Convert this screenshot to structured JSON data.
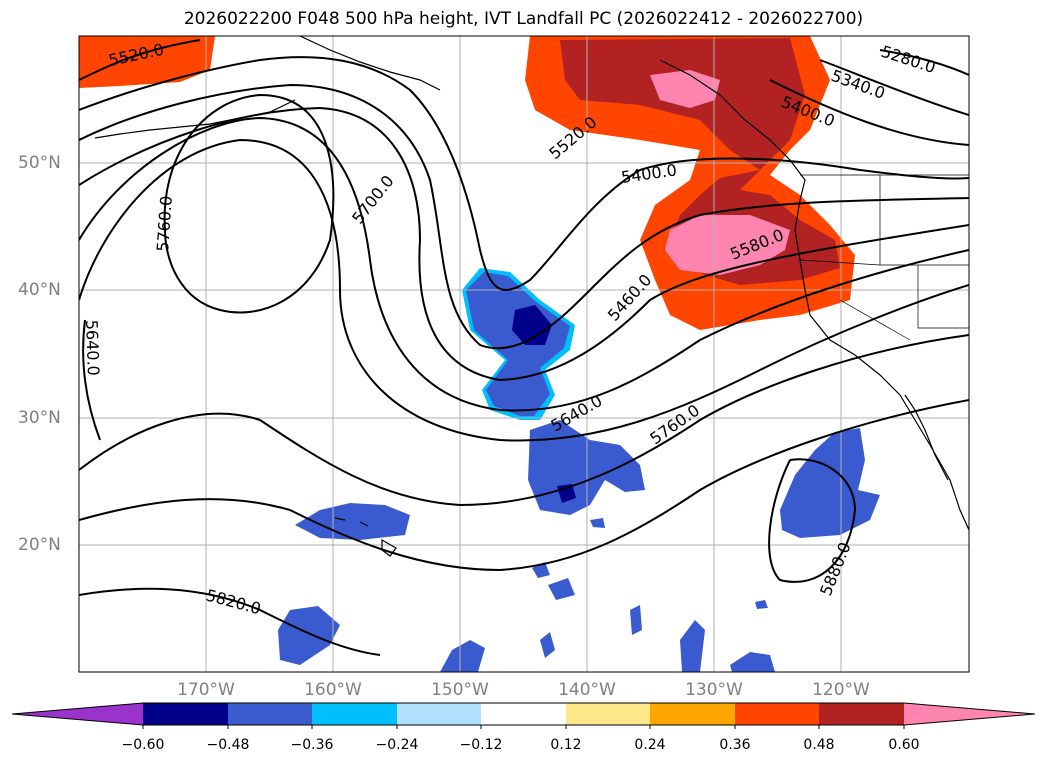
{
  "title": "2026022200 F048 500 hPa height, IVT Landfall PC (2026022412 - 2026022700)",
  "lat_labels": [
    "50°N",
    "40°N",
    "30°N",
    "20°N"
  ],
  "lon_labels": [
    "170°W",
    "160°W",
    "150°W",
    "140°W",
    "130°W",
    "120°W"
  ],
  "contour_labels": [
    "5520.0",
    "5520.0",
    "5400.0",
    "5280.0",
    "5340.0",
    "5400.0",
    "5700.0",
    "5760.0",
    "5640.0",
    "5460.0",
    "5580.0",
    "5640.0",
    "5760.0",
    "5820.0",
    "5880.0"
  ],
  "colorbar": {
    "ticks": [
      "−0.60",
      "−0.48",
      "−0.36",
      "−0.24",
      "−0.12",
      "0.12",
      "0.24",
      "0.36",
      "0.48",
      "0.60"
    ],
    "colors": [
      "#9933cc",
      "#00008b",
      "#3a5bcf",
      "#00bfff",
      "#b0e2ff",
      "#ffffff",
      "#ffe88a",
      "#ffa500",
      "#ff4500",
      "#b22222",
      "#ff85b0"
    ]
  },
  "fill_colors": {
    "pink": "#ff85b0",
    "darkred": "#b22222",
    "orangered": "#ff4500",
    "royal": "#3a5bcf",
    "navy": "#00008b",
    "sky": "#00bfff"
  }
}
